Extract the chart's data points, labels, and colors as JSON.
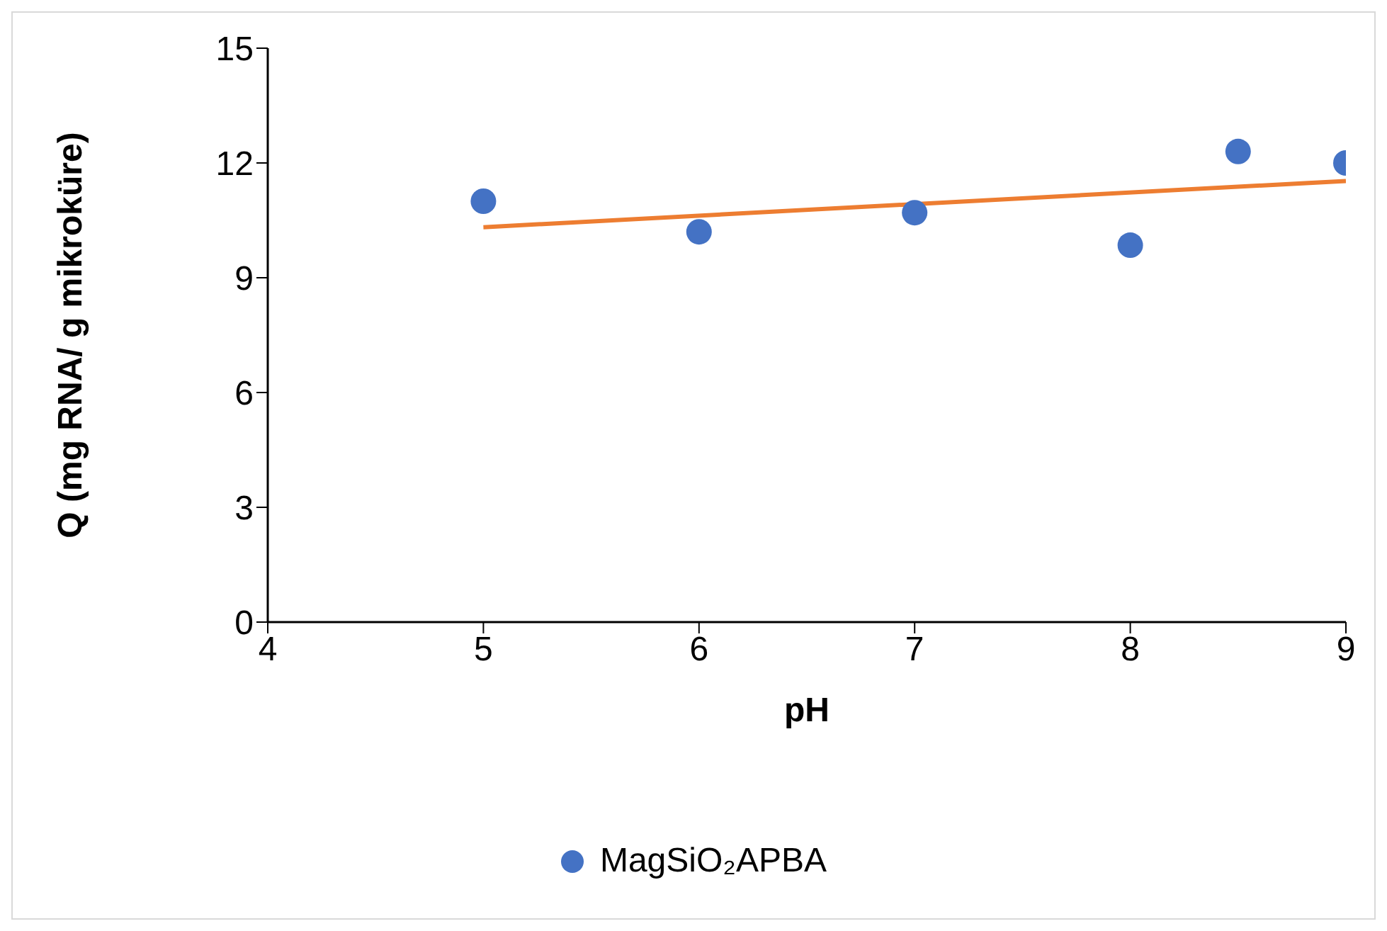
{
  "chart_data": {
    "type": "scatter",
    "xlabel": "pH",
    "ylabel": "Q (mg RNA/ g mikroküre)",
    "xlim": [
      4,
      9
    ],
    "xticks": [
      4,
      5,
      6,
      7,
      8,
      9
    ],
    "ylim": [
      0,
      15
    ],
    "yticks": [
      0,
      3,
      6,
      9,
      12,
      15
    ],
    "grid": false,
    "legend": "bottom",
    "marker": "circle",
    "series": [
      {
        "name": "MagSiO₂APBA",
        "color": "#4472c4",
        "x": [
          5,
          6,
          7,
          8,
          8.5,
          9
        ],
        "values": [
          11.0,
          10.2,
          10.7,
          9.85,
          12.3,
          12.0
        ]
      },
      {
        "type": "line",
        "color": "#ed7d31",
        "x": [
          5,
          9
        ],
        "values": [
          10.32,
          11.53
        ],
        "marker": "none",
        "line_style": "solid"
      }
    ]
  }
}
